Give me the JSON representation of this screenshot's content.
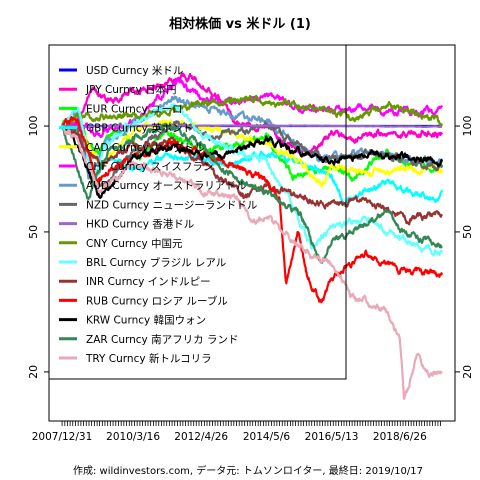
{
  "chart_data": {
    "type": "line",
    "title": "相対株価 vs 米ドル (1)",
    "caption": "作成: wildinvestors.com, データ元: トムソンロイター, 最終日: 2019/10/17",
    "log_y": true,
    "ylim": [
      14.5,
      170
    ],
    "y_ticks": [
      20,
      50,
      100
    ],
    "x_start": "2007/12/31",
    "x_end": "2019/10/17",
    "x_tick_labels": [
      "2007/12/31",
      "2010/3/16",
      "2012/4/26",
      "2014/5/6",
      "2016/5/13",
      "2018/6/26"
    ],
    "legend_position": "top-left",
    "series": [
      {
        "name": "USD Curncy 米ドル",
        "color": "#0000ff",
        "points": [
          [
            "2007/12/31",
            100
          ],
          [
            "2019/10/17",
            100
          ]
        ]
      },
      {
        "name": "JPY Curncy 日本円",
        "color": "#ff00cc",
        "points": [
          [
            "2007/12/31",
            100
          ],
          [
            "2008/6/1",
            102
          ],
          [
            "2008/12/15",
            125
          ],
          [
            "2009/6/1",
            118
          ],
          [
            "2010/3/16",
            125
          ],
          [
            "2011/3/1",
            132
          ],
          [
            "2011/10/31",
            140
          ],
          [
            "2012/4/26",
            133
          ],
          [
            "2012/12/1",
            120
          ],
          [
            "2013/6/1",
            102
          ],
          [
            "2014/1/1",
            100
          ],
          [
            "2014/5/6",
            102
          ],
          [
            "2014/12/1",
            88
          ],
          [
            "2015/6/1",
            84
          ],
          [
            "2016/1/1",
            86
          ],
          [
            "2016/5/13",
            96
          ],
          [
            "2016/12/1",
            90
          ],
          [
            "2017/6/1",
            94
          ],
          [
            "2018/1/1",
            96
          ],
          [
            "2018/6/26",
            95
          ],
          [
            "2019/1/1",
            96
          ],
          [
            "2019/10/17",
            95
          ]
        ]
      },
      {
        "name": "EUR Curncy ユーロ",
        "color": "#00ff00",
        "points": [
          [
            "2007/12/31",
            100
          ],
          [
            "2008/7/1",
            108
          ],
          [
            "2008/11/1",
            88
          ],
          [
            "2009/3/1",
            86
          ],
          [
            "2009/11/1",
            102
          ],
          [
            "2010/6/1",
            82
          ],
          [
            "2011/4/1",
            97
          ],
          [
            "2012/7/1",
            84
          ],
          [
            "2014/5/6",
            94
          ],
          [
            "2015/3/1",
            72
          ],
          [
            "2016/5/13",
            77
          ],
          [
            "2017/1/1",
            71
          ],
          [
            "2018/2/1",
            84
          ],
          [
            "2018/6/26",
            79
          ],
          [
            "2019/10/17",
            76
          ]
        ]
      },
      {
        "name": "GBP Curncy 英ポンド",
        "color": "#00ffff",
        "points": [
          [
            "2007/12/31",
            100
          ],
          [
            "2008/6/1",
            98
          ],
          [
            "2009/1/1",
            72
          ],
          [
            "2009/6/1",
            82
          ],
          [
            "2010/3/16",
            75
          ],
          [
            "2011/5/1",
            83
          ],
          [
            "2012/4/26",
            81
          ],
          [
            "2013/3/1",
            76
          ],
          [
            "2014/5/6",
            85
          ],
          [
            "2015/6/1",
            79
          ],
          [
            "2016/5/13",
            73
          ],
          [
            "2016/10/1",
            61
          ],
          [
            "2018/2/1",
            70
          ],
          [
            "2018/6/26",
            66
          ],
          [
            "2019/9/1",
            61
          ],
          [
            "2019/10/17",
            64
          ]
        ]
      },
      {
        "name": "CAD Curncy カナダドル",
        "color": "#ffff00",
        "points": [
          [
            "2007/12/31",
            100
          ],
          [
            "2008/7/1",
            102
          ],
          [
            "2009/3/1",
            78
          ],
          [
            "2010/3/16",
            97
          ],
          [
            "2011/7/1",
            103
          ],
          [
            "2012/4/26",
            100
          ],
          [
            "2013/6/1",
            95
          ],
          [
            "2014/5/6",
            90
          ],
          [
            "2015/6/1",
            78
          ],
          [
            "2016/1/20",
            68
          ],
          [
            "2016/5/13",
            77
          ],
          [
            "2017/5/1",
            73
          ],
          [
            "2018/6/26",
            76
          ],
          [
            "2019/10/17",
            75
          ]
        ]
      },
      {
        "name": "CHF Curncy スイスフラン",
        "color": "#ff00ff",
        "points": [
          [
            "2007/12/31",
            100
          ],
          [
            "2008/6/1",
            102
          ],
          [
            "2009/3/1",
            95
          ],
          [
            "2010/3/16",
            103
          ],
          [
            "2011/8/9",
            135
          ],
          [
            "2012/4/26",
            120
          ],
          [
            "2013/6/1",
            116
          ],
          [
            "2014/5/6",
            123
          ],
          [
            "2015/1/20",
            115
          ],
          [
            "2016/5/13",
            110
          ],
          [
            "2017/6/1",
            112
          ],
          [
            "2018/6/26",
            110
          ],
          [
            "2019/10/17",
            111
          ]
        ]
      },
      {
        "name": "AUD Curncy オーストラリアドル",
        "color": "#6699cc",
        "points": [
          [
            "2007/12/31",
            100
          ],
          [
            "2008/7/1",
            110
          ],
          [
            "2008/10/27",
            70
          ],
          [
            "2009/6/1",
            90
          ],
          [
            "2010/3/16",
            102
          ],
          [
            "2011/7/1",
            120
          ],
          [
            "2012/4/26",
            115
          ],
          [
            "2013/6/1",
            107
          ],
          [
            "2014/5/6",
            103
          ],
          [
            "2015/6/1",
            87
          ],
          [
            "2016/1/1",
            80
          ],
          [
            "2016/5/13",
            82
          ],
          [
            "2017/6/1",
            84
          ],
          [
            "2018/6/26",
            81
          ],
          [
            "2019/10/17",
            78
          ]
        ]
      },
      {
        "name": "NZD Curncy ニュージーランドドル",
        "color": "#666666",
        "points": [
          [
            "2007/12/31",
            100
          ],
          [
            "2008/6/1",
            98
          ],
          [
            "2009/3/1",
            66
          ],
          [
            "2010/3/16",
            84
          ],
          [
            "2011/7/1",
            102
          ],
          [
            "2012/4/26",
            95
          ],
          [
            "2013/6/1",
            96
          ],
          [
            "2014/5/6",
            102
          ],
          [
            "2015/6/1",
            87
          ],
          [
            "2016/5/13",
            80
          ],
          [
            "2017/6/1",
            84
          ],
          [
            "2018/6/26",
            81
          ],
          [
            "2019/10/17",
            76
          ]
        ]
      },
      {
        "name": "HKD Curncy 香港ドル",
        "color": "#9966cc",
        "points": [
          [
            "2007/12/31",
            100
          ],
          [
            "2008/6/1",
            99.5
          ],
          [
            "2010/3/16",
            100.2
          ],
          [
            "2014/5/6",
            100.3
          ],
          [
            "2016/5/13",
            100.1
          ],
          [
            "2018/6/26",
            99.7
          ],
          [
            "2019/10/17",
            99.6
          ]
        ]
      },
      {
        "name": "CNY Curncy 中国元",
        "color": "#669900",
        "points": [
          [
            "2007/12/31",
            100
          ],
          [
            "2008/7/1",
            106
          ],
          [
            "2010/6/1",
            107
          ],
          [
            "2012/4/26",
            115
          ],
          [
            "2014/1/1",
            120
          ],
          [
            "2014/5/6",
            117
          ],
          [
            "2015/8/11",
            113
          ],
          [
            "2016/5/13",
            111
          ],
          [
            "2017/1/1",
            105
          ],
          [
            "2018/3/1",
            115
          ],
          [
            "2018/6/26",
            112
          ],
          [
            "2019/10/17",
            103
          ]
        ]
      },
      {
        "name": "BRL Curncy ブラジル レアル",
        "color": "#66ffff",
        "points": [
          [
            "2007/12/31",
            100
          ],
          [
            "2008/7/1",
            115
          ],
          [
            "2008/12/1",
            72
          ],
          [
            "2009/6/1",
            90
          ],
          [
            "2010/3/16",
            102
          ],
          [
            "2011/7/1",
            115
          ],
          [
            "2012/4/26",
            95
          ],
          [
            "2013/6/1",
            84
          ],
          [
            "2014/5/6",
            80
          ],
          [
            "2015/3/1",
            60
          ],
          [
            "2015/9/24",
            45
          ],
          [
            "2016/5/13",
            52
          ],
          [
            "2017/6/1",
            55
          ],
          [
            "2018/6/26",
            48
          ],
          [
            "2019/10/17",
            44
          ]
        ]
      },
      {
        "name": "INR Curncy インドルピー",
        "color": "#993333",
        "points": [
          [
            "2007/12/31",
            100
          ],
          [
            "2008/6/1",
            94
          ],
          [
            "2009/3/1",
            78
          ],
          [
            "2010/3/16",
            88
          ],
          [
            "2011/7/1",
            90
          ],
          [
            "2012/4/26",
            79
          ],
          [
            "2013/8/28",
            63
          ],
          [
            "2014/5/6",
            67
          ],
          [
            "2015/6/1",
            63
          ],
          [
            "2016/5/13",
            60
          ],
          [
            "2017/6/1",
            62
          ],
          [
            "2018/10/1",
            54
          ],
          [
            "2019/10/17",
            57
          ]
        ]
      },
      {
        "name": "RUB Curncy ロシア ルーブル",
        "color": "#ff0000",
        "points": [
          [
            "2007/12/31",
            100
          ],
          [
            "2008/7/1",
            105
          ],
          [
            "2009/2/1",
            70
          ],
          [
            "2010/3/16",
            82
          ],
          [
            "2011/7/1",
            88
          ],
          [
            "2012/4/26",
            84
          ],
          [
            "2013/6/1",
            77
          ],
          [
            "2014/5/6",
            70
          ],
          [
            "2014/10/1",
            62
          ],
          [
            "2014/12/16",
            36
          ],
          [
            "2015/5/1",
            50
          ],
          [
            "2015/8/1",
            38
          ],
          [
            "2016/1/21",
            31
          ],
          [
            "2016/5/13",
            37
          ],
          [
            "2017/6/1",
            43
          ],
          [
            "2018/6/26",
            39
          ],
          [
            "2019/10/17",
            38
          ]
        ]
      },
      {
        "name": "KRW Curncy 韓国ウォン",
        "color": "#000000",
        "points": [
          [
            "2007/12/31",
            100
          ],
          [
            "2008/6/1",
            90
          ],
          [
            "2009/3/2",
            62
          ],
          [
            "2010/3/16",
            82
          ],
          [
            "2011/7/1",
            88
          ],
          [
            "2012/4/26",
            82
          ],
          [
            "2013/6/1",
            84
          ],
          [
            "2014/5/6",
            92
          ],
          [
            "2015/6/1",
            84
          ],
          [
            "2016/5/13",
            80
          ],
          [
            "2017/6/1",
            83
          ],
          [
            "2018/6/26",
            83
          ],
          [
            "2019/10/17",
            79
          ]
        ]
      },
      {
        "name": "ZAR Curncy 南アフリカ ランド",
        "color": "#338855",
        "points": [
          [
            "2007/12/31",
            100
          ],
          [
            "2008/10/22",
            62
          ],
          [
            "2009/6/1",
            85
          ],
          [
            "2010/3/16",
            93
          ],
          [
            "2011/5/1",
            100
          ],
          [
            "2012/4/26",
            88
          ],
          [
            "2013/6/1",
            70
          ],
          [
            "2014/5/6",
            65
          ],
          [
            "2015/6/1",
            56
          ],
          [
            "2016/1/20",
            40
          ],
          [
            "2016/5/13",
            47
          ],
          [
            "2017/6/1",
            52
          ],
          [
            "2018/2/1",
            58
          ],
          [
            "2018/6/26",
            50
          ],
          [
            "2019/10/17",
            46
          ]
        ]
      },
      {
        "name": "TRY Curncy 新トルコリラ",
        "color": "#e8aab8",
        "points": [
          [
            "2007/12/31",
            100
          ],
          [
            "2008/6/1",
            93
          ],
          [
            "2009/3/1",
            66
          ],
          [
            "2010/3/16",
            78
          ],
          [
            "2011/7/1",
            72
          ],
          [
            "2012/4/26",
            66
          ],
          [
            "2013/6/1",
            62
          ],
          [
            "2014/1/1",
            53
          ],
          [
            "2014/5/6",
            56
          ],
          [
            "2015/6/1",
            45
          ],
          [
            "2016/5/13",
            40
          ],
          [
            "2017/1/1",
            33
          ],
          [
            "2018/1/1",
            30
          ],
          [
            "2018/6/26",
            25
          ],
          [
            "2018/8/13",
            16.5
          ],
          [
            "2019/1/1",
            22
          ],
          [
            "2019/6/1",
            19.5
          ],
          [
            "2019/10/17",
            20
          ]
        ]
      }
    ]
  }
}
